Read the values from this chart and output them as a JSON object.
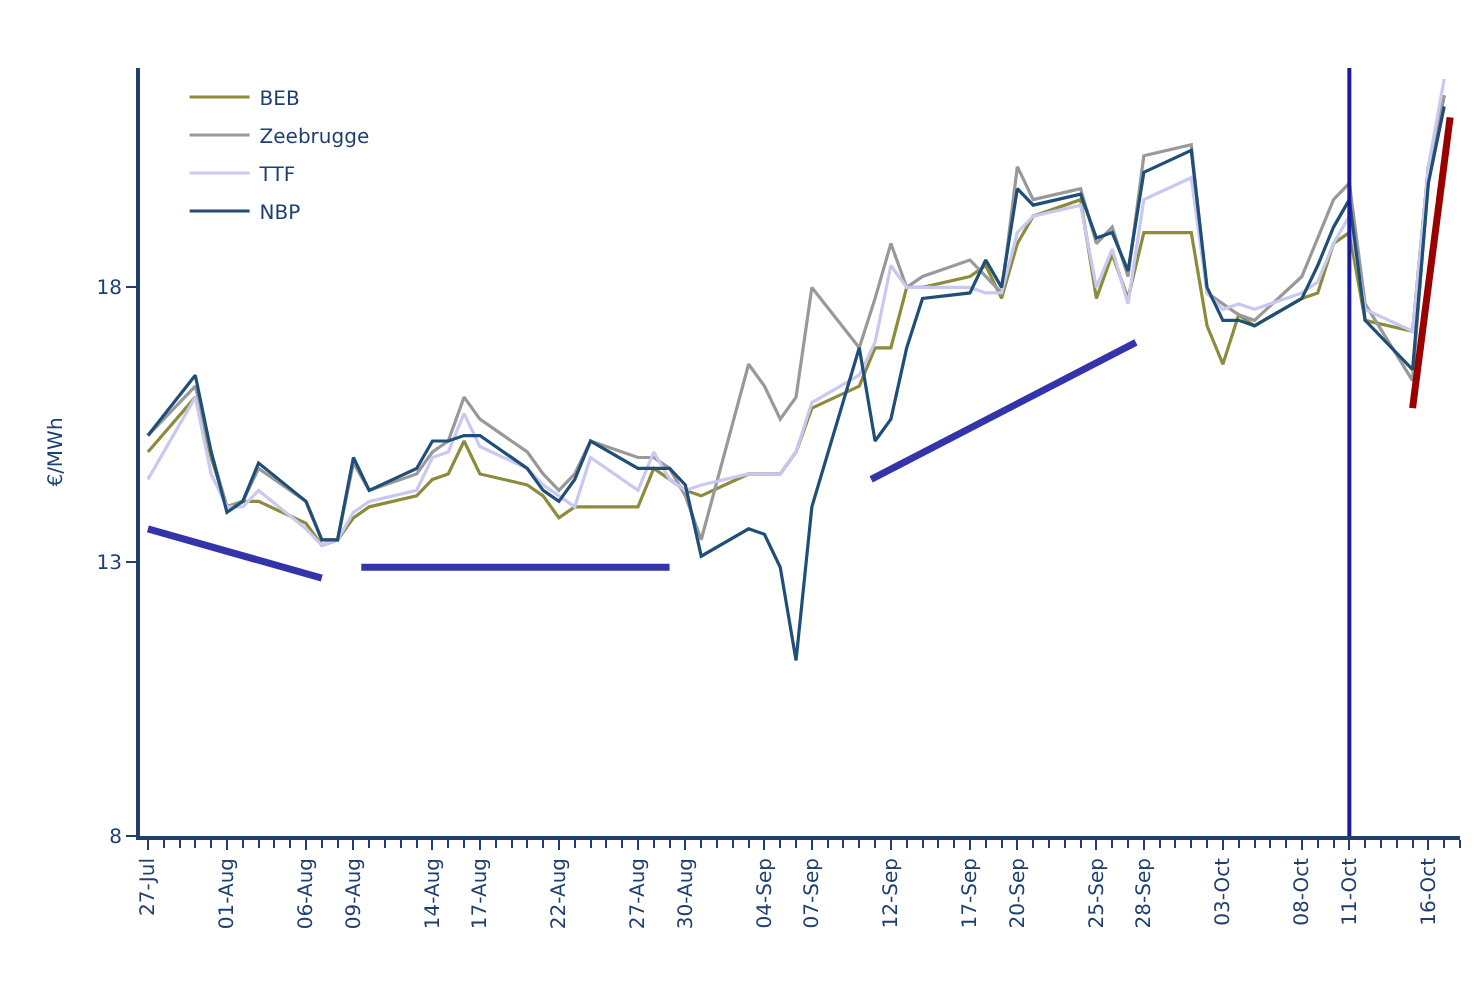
{
  "chart_data": {
    "type": "line",
    "ylabel": "€/MWh",
    "x": [
      "--07-27",
      "--07-30",
      "--07-31",
      "--08-01",
      "--08-02",
      "--08-03",
      "--08-06",
      "--08-07",
      "--08-08",
      "--08-09",
      "--08-10",
      "--08-13",
      "--08-14",
      "--08-15",
      "--08-16",
      "--08-17",
      "--08-20",
      "--08-21",
      "--08-22",
      "--08-23",
      "--08-24",
      "--08-27",
      "--08-28",
      "--08-29",
      "--08-30",
      "--08-31",
      "--09-03",
      "--09-04",
      "--09-05",
      "--09-06",
      "--09-07",
      "--09-10",
      "--09-11",
      "--09-12",
      "--09-13",
      "--09-14",
      "--09-17",
      "--09-18",
      "--09-19",
      "--09-20",
      "--09-21",
      "--09-24",
      "--09-25",
      "--09-26",
      "--09-27",
      "--09-28",
      "--10-01",
      "--10-02",
      "--10-03",
      "--10-04",
      "--10-05",
      "--10-08",
      "--10-09",
      "--10-10",
      "--10-11",
      "--10-12",
      "--10-15",
      "--10-16",
      "--10-17"
    ],
    "series": [
      {
        "name": "BEB",
        "color": "#8c8c3c",
        "values": [
          15.0,
          16.0,
          14.9,
          14.0,
          14.1,
          14.1,
          13.7,
          13.3,
          13.4,
          13.8,
          14.0,
          14.2,
          14.5,
          14.6,
          15.2,
          14.6,
          14.4,
          14.2,
          13.8,
          14.0,
          14.0,
          14.0,
          14.7,
          14.5,
          14.3,
          14.2,
          14.6,
          14.6,
          14.6,
          15.0,
          15.8,
          16.2,
          16.9,
          16.9,
          18.0,
          18.0,
          18.2,
          18.4,
          17.8,
          18.8,
          19.3,
          19.6,
          17.8,
          18.6,
          17.8,
          19.0,
          19.0,
          17.3,
          16.6,
          17.5,
          17.3,
          17.8,
          17.9,
          18.8,
          19.0,
          17.4,
          17.2,
          20.2,
          21.5
        ]
      },
      {
        "name": "Zeebrugge",
        "color": "#999999",
        "values": [
          15.3,
          16.2,
          15.0,
          14.0,
          14.1,
          14.7,
          14.1,
          13.4,
          13.4,
          14.8,
          14.3,
          14.6,
          15.0,
          15.2,
          16.0,
          15.6,
          15.0,
          14.6,
          14.3,
          14.6,
          15.2,
          14.9,
          14.9,
          14.7,
          14.2,
          13.4,
          16.6,
          16.2,
          15.6,
          16.0,
          18.0,
          16.9,
          17.8,
          18.8,
          18.0,
          18.2,
          18.5,
          18.2,
          17.9,
          20.2,
          19.6,
          19.8,
          18.8,
          19.1,
          18.2,
          20.4,
          20.6,
          17.9,
          17.7,
          17.5,
          17.4,
          18.2,
          18.9,
          19.6,
          19.9,
          17.7,
          16.3,
          20.0,
          21.5
        ]
      },
      {
        "name": "TTF",
        "color": "#c8c8f0",
        "values": [
          14.5,
          16.0,
          14.6,
          14.0,
          14.0,
          14.3,
          13.6,
          13.3,
          13.4,
          13.9,
          14.1,
          14.3,
          14.9,
          15.0,
          15.7,
          15.1,
          14.7,
          14.4,
          14.2,
          14.0,
          14.9,
          14.3,
          15.0,
          14.5,
          14.3,
          14.4,
          14.6,
          14.6,
          14.6,
          15.0,
          15.9,
          16.4,
          17.0,
          18.4,
          18.0,
          18.0,
          18.0,
          17.9,
          17.9,
          19.0,
          19.3,
          19.5,
          18.0,
          18.7,
          17.7,
          19.6,
          20.0,
          17.9,
          17.6,
          17.7,
          17.6,
          17.9,
          18.1,
          18.8,
          19.3,
          17.6,
          17.2,
          20.2,
          21.8
        ]
      },
      {
        "name": "NBP",
        "color": "#1f4e79",
        "values": [
          15.3,
          16.4,
          15.0,
          13.9,
          14.1,
          14.8,
          14.1,
          13.4,
          13.4,
          14.9,
          14.3,
          14.7,
          15.2,
          15.2,
          15.3,
          15.3,
          14.7,
          14.3,
          14.1,
          14.5,
          15.2,
          14.7,
          14.7,
          14.7,
          14.4,
          13.1,
          13.6,
          13.5,
          12.9,
          11.2,
          14.0,
          16.9,
          15.2,
          15.6,
          16.9,
          17.8,
          17.9,
          18.5,
          18.0,
          19.8,
          19.5,
          19.7,
          18.9,
          19.0,
          18.3,
          20.1,
          20.5,
          18.0,
          17.4,
          17.4,
          17.3,
          17.8,
          18.4,
          19.1,
          19.6,
          17.4,
          16.5,
          19.9,
          21.3
        ]
      },
      {
        "type": "line",
        "color": "#3333aa",
        "x": [
          "--07-27",
          "--08-07"
        ],
        "values": [
          13.6,
          12.7
        ]
      },
      {
        "type": "line",
        "color": "#3333aa",
        "x": [
          "--08-09T12:00",
          "--08-29"
        ],
        "values": [
          12.9,
          12.9
        ]
      },
      {
        "type": "line",
        "color": "#3333aa",
        "x": [
          "--09-10T18:00",
          "--09-27T12:00"
        ],
        "values": [
          14.5,
          17.0
        ]
      },
      {
        "type": "line",
        "color": "#990000",
        "x": [
          "--10-15",
          "--10-17T09:00"
        ],
        "values": [
          15.8,
          21.1
        ]
      }
    ],
    "ref_lines": [
      {
        "axis": "x",
        "value": "--10-11",
        "color": "#1a1aa0"
      }
    ],
    "xlim": [
      "--07-26T12:00",
      "--10-18T00:00"
    ],
    "xticks": [
      {
        "value": "--07-27",
        "label": "27-Jul"
      },
      {
        "value": "--08-01",
        "label": "01-Aug"
      },
      {
        "value": "--08-06",
        "label": "06-Aug"
      },
      {
        "value": "--08-09",
        "label": "09-Aug"
      },
      {
        "value": "--08-14",
        "label": "14-Aug"
      },
      {
        "value": "--08-17",
        "label": "17-Aug"
      },
      {
        "value": "--08-22",
        "label": "22-Aug"
      },
      {
        "value": "--08-27",
        "label": "27-Aug"
      },
      {
        "value": "--08-30",
        "label": "30-Aug"
      },
      {
        "value": "--09-04",
        "label": "04-Sep"
      },
      {
        "value": "--09-07",
        "label": "07-Sep"
      },
      {
        "value": "--09-12",
        "label": "12-Sep"
      },
      {
        "value": "--09-17",
        "label": "17-Sep"
      },
      {
        "value": "--09-20",
        "label": "20-Sep"
      },
      {
        "value": "--09-25",
        "label": "25-Sep"
      },
      {
        "value": "--09-28",
        "label": "28-Sep"
      },
      {
        "value": "--10-03",
        "label": "03-Oct"
      },
      {
        "value": "--10-08",
        "label": "08-Oct"
      },
      {
        "value": "--10-11",
        "label": "11-Oct"
      },
      {
        "value": "--10-16",
        "label": "16-Oct"
      }
    ],
    "ylim": [
      8,
      22
    ],
    "yticks": [
      8,
      13,
      18
    ],
    "legend": "top left",
    "marker": "none",
    "line_style": "solid"
  }
}
